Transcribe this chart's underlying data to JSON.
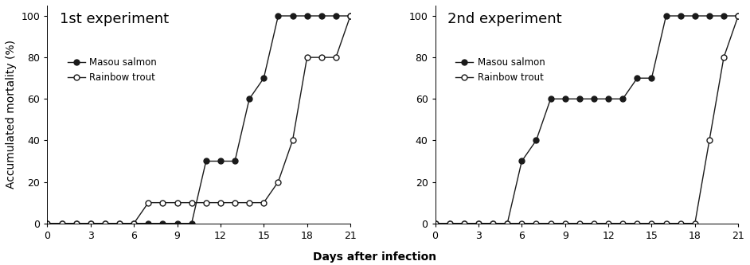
{
  "exp1": {
    "title": "1st experiment",
    "masou_x": [
      0,
      1,
      2,
      3,
      4,
      5,
      6,
      7,
      8,
      9,
      10,
      11,
      12,
      13,
      14,
      15,
      16,
      17,
      18,
      19,
      20,
      21
    ],
    "masou_y": [
      0,
      0,
      0,
      0,
      0,
      0,
      0,
      0,
      0,
      0,
      0,
      30,
      30,
      30,
      60,
      70,
      100,
      100,
      100,
      100,
      100,
      100
    ],
    "trout_x": [
      0,
      1,
      2,
      3,
      4,
      5,
      6,
      7,
      8,
      9,
      10,
      11,
      12,
      13,
      14,
      15,
      16,
      17,
      18,
      19,
      20,
      21
    ],
    "trout_y": [
      0,
      0,
      0,
      0,
      0,
      0,
      0,
      10,
      10,
      10,
      10,
      10,
      10,
      10,
      10,
      10,
      20,
      40,
      80,
      80,
      80,
      100
    ]
  },
  "exp2": {
    "title": "2nd experiment",
    "masou_x": [
      0,
      1,
      2,
      3,
      4,
      5,
      6,
      7,
      8,
      9,
      10,
      11,
      12,
      13,
      14,
      15,
      16,
      17,
      18,
      19,
      20,
      21
    ],
    "masou_y": [
      0,
      0,
      0,
      0,
      0,
      0,
      30,
      40,
      60,
      60,
      60,
      60,
      60,
      60,
      70,
      70,
      100,
      100,
      100,
      100,
      100,
      100
    ],
    "trout_x": [
      0,
      1,
      2,
      3,
      4,
      5,
      6,
      7,
      8,
      9,
      10,
      11,
      12,
      13,
      14,
      15,
      16,
      17,
      18,
      19,
      20,
      21
    ],
    "trout_y": [
      0,
      0,
      0,
      0,
      0,
      0,
      0,
      0,
      0,
      0,
      0,
      0,
      0,
      0,
      0,
      0,
      0,
      0,
      0,
      40,
      80,
      100
    ]
  },
  "ylabel": "Accumulated mortality (%)",
  "xlabel": "Days after infection",
  "legend_masou": "Masou salmon",
  "legend_trout": "Rainbow trout",
  "xlim": [
    0,
    21
  ],
  "ylim": [
    0,
    105
  ],
  "xticks": [
    0,
    3,
    6,
    9,
    12,
    15,
    18,
    21
  ],
  "yticks": [
    0,
    20,
    40,
    60,
    80,
    100
  ],
  "line_color": "#1a1a1a",
  "marker_size": 5,
  "title_fontsize": 13,
  "label_fontsize": 10,
  "tick_fontsize": 9
}
